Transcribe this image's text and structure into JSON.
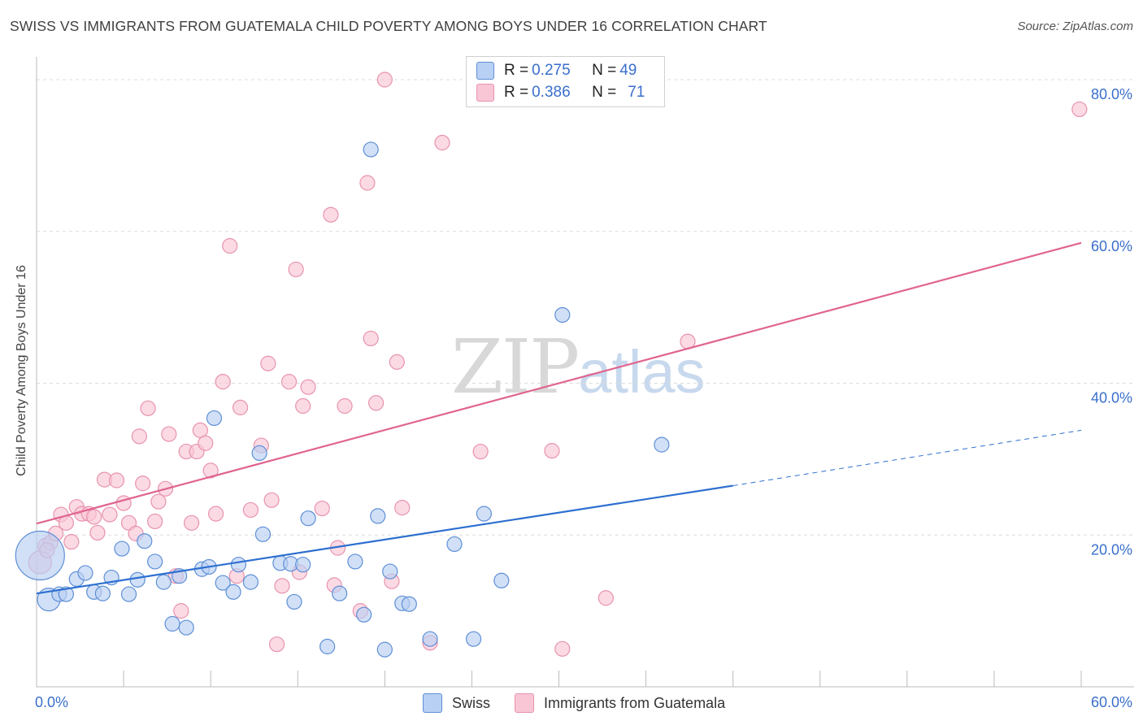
{
  "header": {
    "title": "SWISS VS IMMIGRANTS FROM GUATEMALA CHILD POVERTY AMONG BOYS UNDER 16 CORRELATION CHART",
    "source": "Source: ZipAtlas.com"
  },
  "watermark": {
    "zip": "ZIP",
    "atlas": "atlas"
  },
  "legend_top": [
    {
      "r_label": "R = ",
      "r_value": "0.275",
      "n_label": "N = ",
      "n_value": "49"
    },
    {
      "r_label": "R = ",
      "r_value": "0.386",
      "n_label": "N = ",
      "n_value": "71"
    }
  ],
  "legend_bottom": [
    {
      "label": "Swiss"
    },
    {
      "label": "Immigrants from Guatemala"
    }
  ],
  "colors": {
    "swiss_fill": "#b8d0f3",
    "swiss_stroke": "#5e8fd6",
    "swiss_line": "#2d6fd0",
    "guat_fill": "#f9c6d6",
    "guat_stroke": "#e893ad",
    "guat_line": "#e0648f",
    "axis_label": "#3a6fcc",
    "grid": "#dcdcdc"
  },
  "chart_data": {
    "type": "scatter",
    "title": "SWISS VS IMMIGRANTS FROM GUATEMALA CHILD POVERTY AMONG BOYS UNDER 16 CORRELATION CHART",
    "xlabel": "",
    "ylabel": "Child Poverty Among Boys Under 16",
    "xlim": [
      0,
      60
    ],
    "ylim": [
      0,
      83
    ],
    "x_tick_labels": [
      {
        "value": 0,
        "label": "0.0%"
      },
      {
        "value": 60,
        "label": "60.0%"
      }
    ],
    "y_tick_labels": [
      {
        "value": 20,
        "label": "20.0%"
      },
      {
        "value": 40,
        "label": "40.0%"
      },
      {
        "value": 60,
        "label": "60.0%"
      },
      {
        "value": 80,
        "label": "80.0%"
      }
    ],
    "y_gridlines": [
      20,
      40,
      60,
      80
    ],
    "series": [
      {
        "name": "Swiss",
        "r": 0.275,
        "n": 49,
        "trend": {
          "x0": 0,
          "y0": 12.3,
          "x1": 40,
          "y1": 26.5,
          "dashed_to_x": 60,
          "dashed_to_y": 33.8
        },
        "points": [
          [
            0.2,
            17.3,
            30
          ],
          [
            0.7,
            11.5,
            14
          ],
          [
            1.3,
            12.2,
            9
          ],
          [
            1.7,
            12.2,
            9
          ],
          [
            2.3,
            14.2,
            9
          ],
          [
            2.8,
            15.0,
            9
          ],
          [
            3.3,
            12.5,
            9
          ],
          [
            3.8,
            12.3,
            9
          ],
          [
            4.3,
            14.4,
            9
          ],
          [
            4.9,
            18.2,
            9
          ],
          [
            5.3,
            12.2,
            9
          ],
          [
            5.8,
            14.1,
            9
          ],
          [
            6.2,
            19.2,
            9
          ],
          [
            6.8,
            16.5,
            9
          ],
          [
            7.3,
            13.8,
            9
          ],
          [
            7.8,
            8.3,
            9
          ],
          [
            8.2,
            14.6,
            9
          ],
          [
            8.6,
            7.8,
            9
          ],
          [
            9.5,
            15.5,
            9
          ],
          [
            9.9,
            15.8,
            9
          ],
          [
            10.2,
            35.4,
            9
          ],
          [
            10.7,
            13.7,
            9
          ],
          [
            11.3,
            12.5,
            9
          ],
          [
            11.6,
            16.1,
            9
          ],
          [
            12.3,
            13.8,
            9
          ],
          [
            12.8,
            30.8,
            9
          ],
          [
            13.0,
            20.1,
            9
          ],
          [
            14.0,
            16.3,
            9
          ],
          [
            14.6,
            16.2,
            9
          ],
          [
            14.8,
            11.2,
            9
          ],
          [
            15.3,
            16.1,
            9
          ],
          [
            15.6,
            22.2,
            9
          ],
          [
            16.7,
            5.3,
            9
          ],
          [
            17.4,
            12.3,
            9
          ],
          [
            18.3,
            16.5,
            9
          ],
          [
            18.8,
            9.5,
            9
          ],
          [
            19.6,
            22.5,
            9
          ],
          [
            20.0,
            4.9,
            9
          ],
          [
            20.3,
            15.2,
            9
          ],
          [
            21.0,
            11.0,
            9
          ],
          [
            21.4,
            10.9,
            9
          ],
          [
            22.6,
            6.3,
            9
          ],
          [
            24.0,
            18.8,
            9
          ],
          [
            25.1,
            6.3,
            9
          ],
          [
            25.7,
            22.8,
            9
          ],
          [
            26.7,
            14.0,
            9
          ],
          [
            30.2,
            49.0,
            9
          ],
          [
            35.9,
            31.9,
            9
          ],
          [
            19.2,
            70.8,
            9
          ]
        ]
      },
      {
        "name": "Immigrants from Guatemala",
        "r": 0.386,
        "n": 71,
        "trend": {
          "x0": 0,
          "y0": 21.5,
          "x1": 60,
          "y1": 58.5
        },
        "points": [
          [
            0.2,
            16.4,
            14
          ],
          [
            0.5,
            18.6,
            9
          ],
          [
            0.8,
            19.0,
            9
          ],
          [
            1.1,
            20.2,
            9
          ],
          [
            1.4,
            22.7,
            9
          ],
          [
            1.7,
            21.6,
            9
          ],
          [
            2.0,
            19.1,
            9
          ],
          [
            2.3,
            23.7,
            9
          ],
          [
            2.6,
            22.8,
            9
          ],
          [
            3.0,
            22.8,
            9
          ],
          [
            3.3,
            22.4,
            9
          ],
          [
            3.5,
            20.3,
            9
          ],
          [
            3.9,
            27.3,
            9
          ],
          [
            4.2,
            22.7,
            9
          ],
          [
            4.6,
            27.2,
            9
          ],
          [
            5.0,
            24.2,
            9
          ],
          [
            5.3,
            21.6,
            9
          ],
          [
            5.7,
            20.2,
            9
          ],
          [
            5.9,
            33.0,
            9
          ],
          [
            6.1,
            26.8,
            9
          ],
          [
            6.4,
            36.7,
            9
          ],
          [
            6.8,
            21.8,
            9
          ],
          [
            7.0,
            24.4,
            9
          ],
          [
            7.4,
            26.1,
            9
          ],
          [
            7.6,
            33.3,
            9
          ],
          [
            8.0,
            14.6,
            9
          ],
          [
            8.3,
            10.0,
            9
          ],
          [
            8.6,
            31.0,
            9
          ],
          [
            8.9,
            21.6,
            9
          ],
          [
            9.2,
            31.0,
            9
          ],
          [
            9.4,
            33.8,
            9
          ],
          [
            9.7,
            32.1,
            9
          ],
          [
            10.0,
            28.5,
            9
          ],
          [
            10.3,
            22.8,
            9
          ],
          [
            10.7,
            40.2,
            9
          ],
          [
            11.1,
            58.1,
            9
          ],
          [
            11.5,
            14.6,
            9
          ],
          [
            11.7,
            36.8,
            9
          ],
          [
            12.3,
            23.3,
            9
          ],
          [
            12.9,
            31.8,
            9
          ],
          [
            13.3,
            42.6,
            9
          ],
          [
            13.5,
            24.6,
            9
          ],
          [
            13.8,
            5.6,
            9
          ],
          [
            14.1,
            13.3,
            9
          ],
          [
            14.5,
            40.2,
            9
          ],
          [
            14.9,
            55.0,
            9
          ],
          [
            15.1,
            15.1,
            9
          ],
          [
            15.3,
            37.0,
            9
          ],
          [
            15.6,
            39.5,
            9
          ],
          [
            16.4,
            23.5,
            9
          ],
          [
            16.9,
            62.2,
            9
          ],
          [
            17.1,
            13.4,
            9
          ],
          [
            17.3,
            18.3,
            9
          ],
          [
            17.7,
            37.0,
            9
          ],
          [
            18.6,
            10.0,
            9
          ],
          [
            19.0,
            66.4,
            9
          ],
          [
            19.2,
            45.9,
            9
          ],
          [
            19.5,
            37.4,
            9
          ],
          [
            20.0,
            80.0,
            9
          ],
          [
            20.4,
            13.9,
            9
          ],
          [
            20.7,
            42.8,
            9
          ],
          [
            21.0,
            23.6,
            9
          ],
          [
            22.6,
            5.8,
            9
          ],
          [
            23.3,
            71.7,
            9
          ],
          [
            25.5,
            31.0,
            9
          ],
          [
            29.6,
            31.1,
            9
          ],
          [
            30.2,
            5.0,
            9
          ],
          [
            32.7,
            11.7,
            9
          ],
          [
            37.4,
            45.5,
            9
          ],
          [
            59.9,
            76.1,
            9
          ],
          [
            0.6,
            18.0,
            9
          ]
        ]
      }
    ]
  }
}
